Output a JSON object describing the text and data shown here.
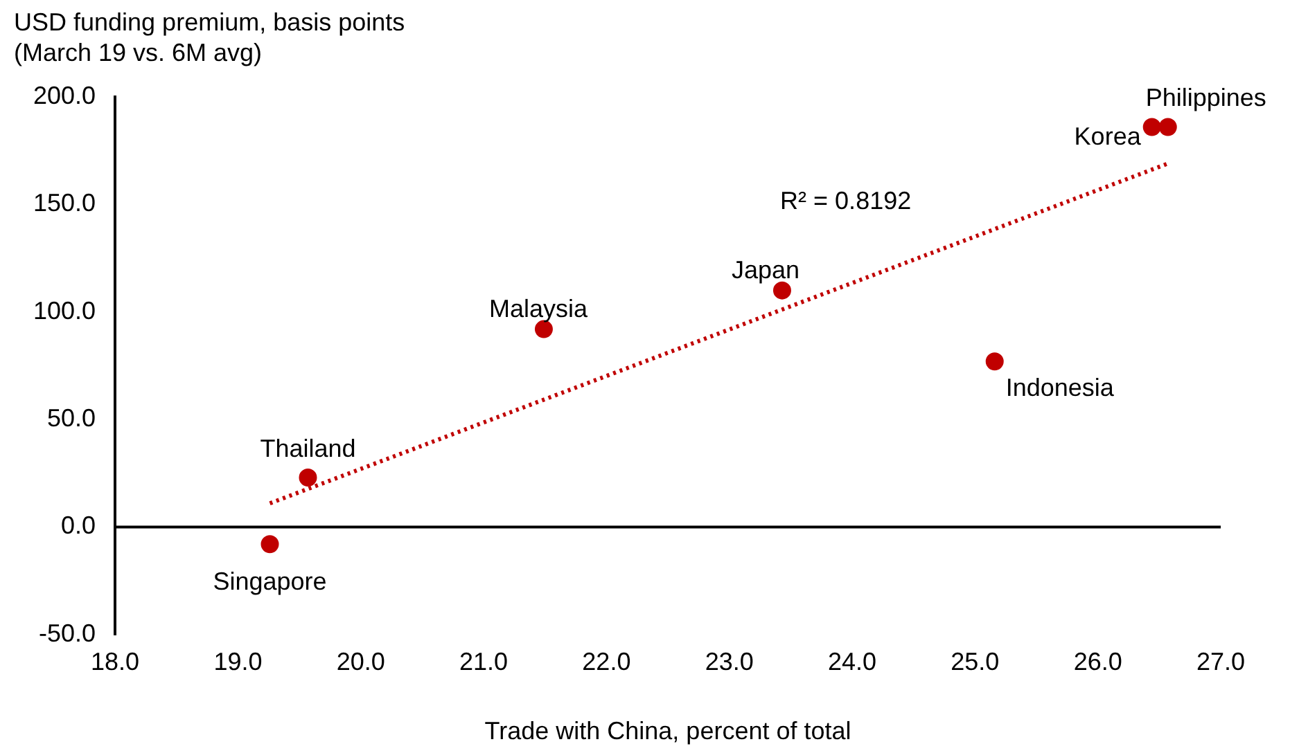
{
  "chart_data": {
    "type": "scatter",
    "ylabel": "USD funding premium, basis points\n(March 19 vs. 6M avg)",
    "xlabel": "Trade with China, percent of total",
    "xlim": [
      18,
      27
    ],
    "xticks": [
      {
        "value": 18,
        "label": "18.0"
      },
      {
        "value": 19,
        "label": "19.0"
      },
      {
        "value": 20,
        "label": "20.0"
      },
      {
        "value": 21,
        "label": "21.0"
      },
      {
        "value": 22,
        "label": "22.0"
      },
      {
        "value": 23,
        "label": "23.0"
      },
      {
        "value": 24,
        "label": "24.0"
      },
      {
        "value": 25,
        "label": "25.0"
      },
      {
        "value": 26,
        "label": "26.0"
      },
      {
        "value": 27,
        "label": "27.0"
      }
    ],
    "ylim": [
      -50,
      200
    ],
    "yticks": [
      {
        "value": -50,
        "label": "-50.0"
      },
      {
        "value": 0,
        "label": "0.0"
      },
      {
        "value": 50,
        "label": "50.0"
      },
      {
        "value": 100,
        "label": "100.0"
      },
      {
        "value": 150,
        "label": "150.0"
      },
      {
        "value": 200,
        "label": "200.0"
      }
    ],
    "grid": false,
    "legend": false,
    "ref_lines": [
      {
        "axis": "y",
        "value": 0,
        "color": "#000000"
      }
    ],
    "series": [
      {
        "color": "#c00000",
        "marker": "circle",
        "x": [
          19.26,
          19.57,
          21.49,
          23.43,
          25.16,
          26.44,
          26.57
        ],
        "values": [
          -8,
          23,
          92,
          110,
          77,
          186,
          186
        ]
      },
      {
        "type": "line",
        "color": "#c00000",
        "line_style": "dotted",
        "marker": "none",
        "x": [
          19.26,
          26.57
        ],
        "values": [
          11,
          169
        ]
      }
    ],
    "annotations": [
      {
        "text": "Singapore",
        "x": 19.26,
        "y": -8
      },
      {
        "text": "Thailand",
        "x": 19.57,
        "y": 23
      },
      {
        "text": "Malaysia",
        "x": 21.49,
        "y": 92
      },
      {
        "text": "Japan",
        "x": 23.43,
        "y": 110
      },
      {
        "text": "Indonesia",
        "x": 25.16,
        "y": 77
      },
      {
        "text": "Korea",
        "x": 26.44,
        "y": 186
      },
      {
        "text": "Philippines",
        "x": 26.57,
        "y": 186
      },
      "R² = 0.8192"
    ]
  }
}
